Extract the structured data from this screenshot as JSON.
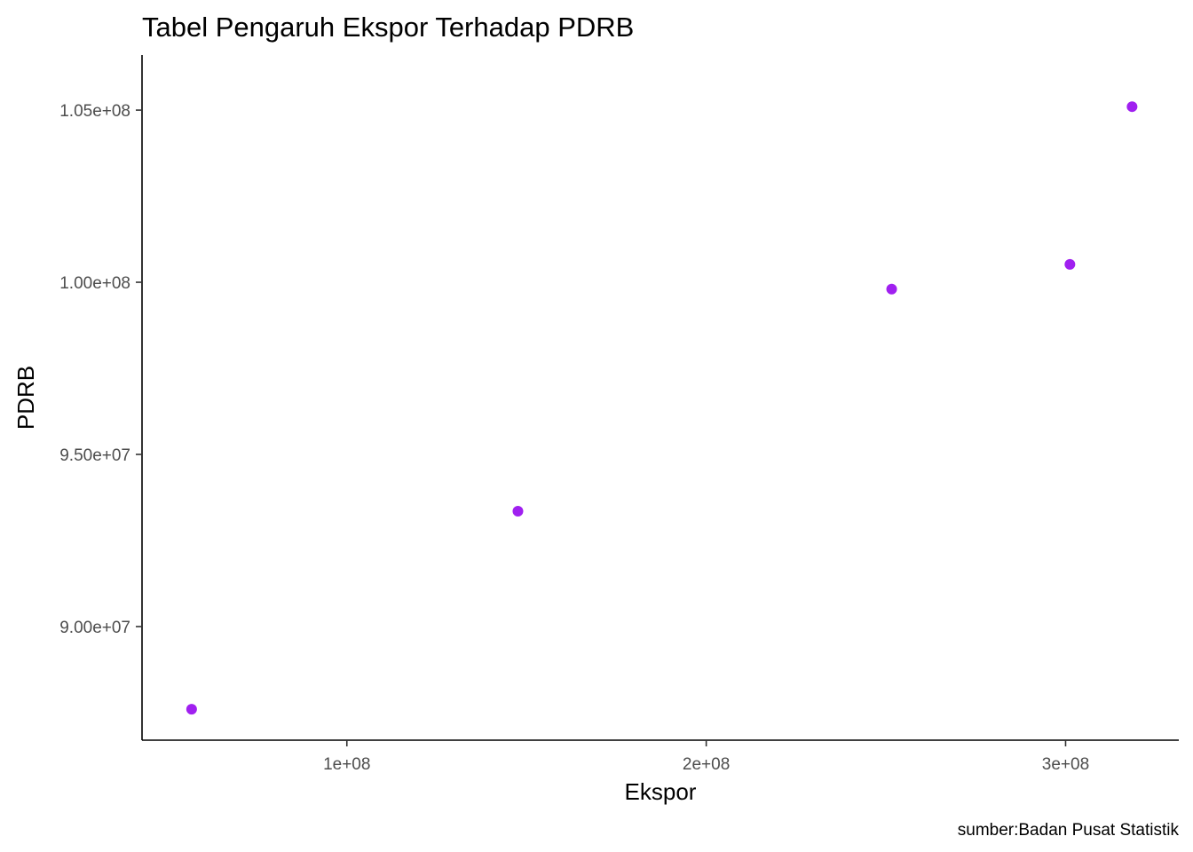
{
  "chart_data": {
    "type": "scatter",
    "title": "Tabel Pengaruh Ekspor Terhadap PDRB",
    "xlabel": "Ekspor",
    "ylabel": "PDRB",
    "caption": "sumber:Badan Pusat Statistik",
    "xlim": [
      43000000,
      331500000
    ],
    "ylim": [
      86700000,
      106600000
    ],
    "x_ticks": [
      100000000,
      200000000,
      300000000
    ],
    "x_tick_labels": [
      "1e+08",
      "2e+08",
      "3e+08"
    ],
    "y_ticks": [
      90000000,
      95000000,
      100000000,
      105000000
    ],
    "y_tick_labels": [
      "9.00e+07",
      "9.50e+07",
      "1.00e+08",
      "1.05e+08"
    ],
    "grid": false,
    "point_color": "#a020f0",
    "series": [
      {
        "x": [
          56800000,
          147600000,
          251600000,
          301200000,
          318500000
        ],
        "y": [
          87600000,
          93350000,
          99800000,
          100520000,
          105100000
        ]
      }
    ]
  }
}
